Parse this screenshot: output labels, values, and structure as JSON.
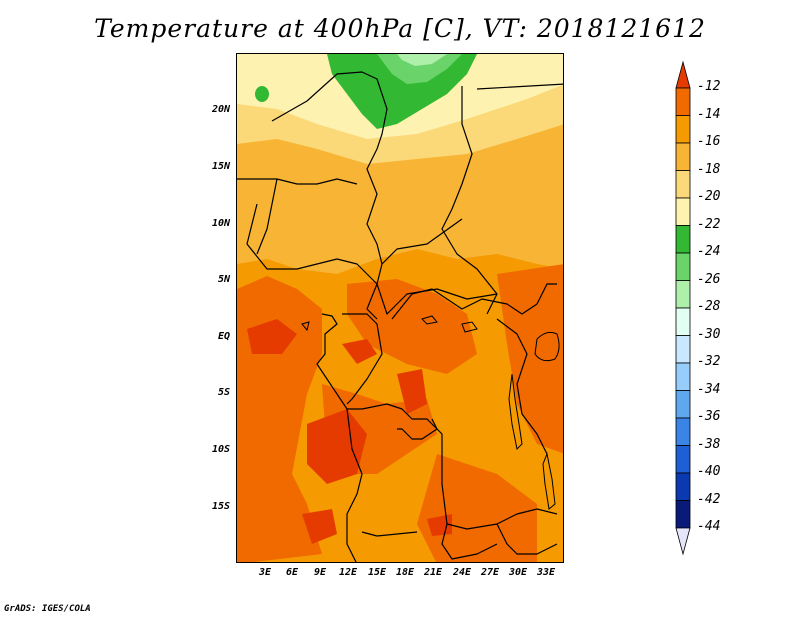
{
  "title": "Temperature at 400hPa [C], VT: 2018121612",
  "credit": "GrADS: IGES/COLA",
  "map": {
    "lat_labels": [
      "20N",
      "15N",
      "10N",
      "5N",
      "EQ",
      "5S",
      "10S",
      "15S"
    ],
    "lon_labels": [
      "3E",
      "6E",
      "9E",
      "12E",
      "15E",
      "18E",
      "21E",
      "24E",
      "27E",
      "30E",
      "33E"
    ]
  },
  "colorbar": {
    "labels": [
      "-12",
      "-14",
      "-16",
      "-18",
      "-20",
      "-22",
      "-24",
      "-26",
      "-28",
      "-30",
      "-32",
      "-34",
      "-36",
      "-38",
      "-40",
      "-42",
      "-44"
    ],
    "colors": [
      "#e63b00",
      "#f06a00",
      "#f59a00",
      "#f8b434",
      "#fbd878",
      "#fdf2b0",
      "#32b832",
      "#6ad36a",
      "#aeefaa",
      "#e2fff4",
      "#c8e8ff",
      "#96cdfa",
      "#5fa8f0",
      "#3a84e6",
      "#1e5fd6",
      "#0b3ab0",
      "#0a1a78",
      "#e6e6fa"
    ]
  }
}
